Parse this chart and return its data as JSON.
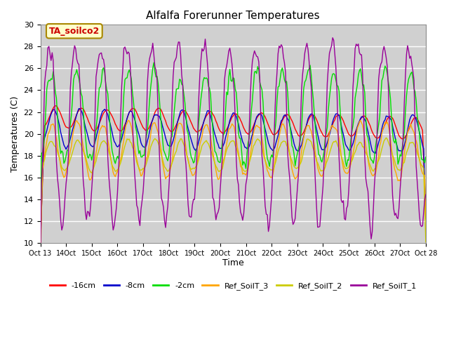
{
  "title": "Alfalfa Forerunner Temperatures",
  "xlabel": "Time",
  "ylabel": "Temperatures (C)",
  "ylim": [
    10,
    30
  ],
  "xlim": [
    0,
    360
  ],
  "annotation": "TA_soilco2",
  "legend_labels": [
    "-16cm",
    "-8cm",
    "-2cm",
    "Ref_SoilT_3",
    "Ref_SoilT_2",
    "Ref_SoilT_1"
  ],
  "legend_colors": [
    "#ff0000",
    "#0000cc",
    "#00dd00",
    "#ffa500",
    "#cccc00",
    "#990099"
  ],
  "xtick_positions": [
    0,
    24,
    48,
    72,
    96,
    120,
    144,
    168,
    192,
    216,
    240,
    264,
    288,
    312,
    336,
    360
  ],
  "xtick_labels": [
    "Oct 13",
    "Oct\n14",
    "15Oct",
    "16Oct",
    "17Oct",
    "18Oct",
    "19Oct",
    "20Oct",
    "21Oct",
    "22Oct",
    "23Oct",
    "24Oct",
    "25Oct",
    "26Oct",
    "27Oct",
    "Oct 28"
  ],
  "ytick_labels": [
    "10",
    "12",
    "14",
    "16",
    "18",
    "20",
    "22",
    "24",
    "26",
    "28",
    "30"
  ],
  "ytick_positions": [
    10,
    12,
    14,
    16,
    18,
    20,
    22,
    24,
    26,
    28,
    30
  ],
  "figsize": [
    6.4,
    4.8
  ],
  "dpi": 100
}
